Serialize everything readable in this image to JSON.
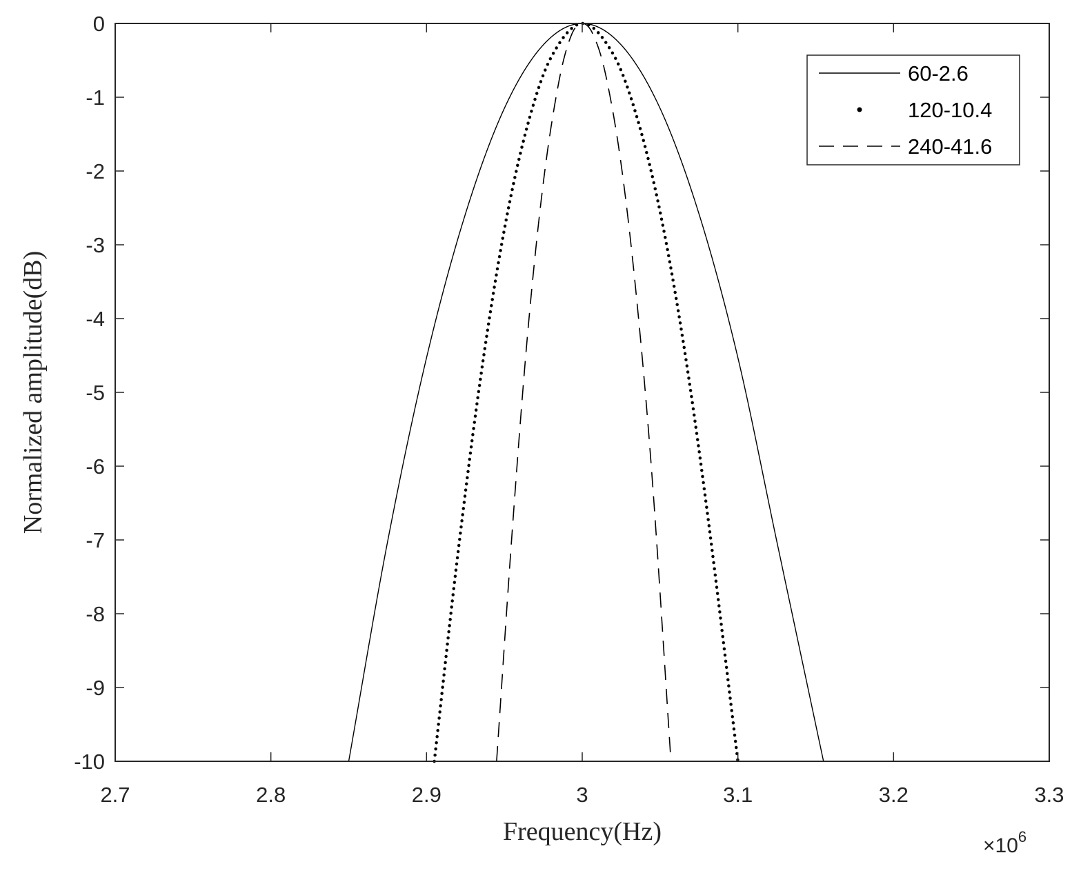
{
  "chart_data": {
    "type": "line",
    "xlabel": "Frequency(Hz)",
    "ylabel": "Normalized amplitude(dB)",
    "x_multiplier": "×10",
    "x_exponent": "6",
    "xlim": [
      2.7,
      3.3
    ],
    "ylim": [
      -10,
      0
    ],
    "x_ticks": [
      2.7,
      2.8,
      2.9,
      3.0,
      3.1,
      3.2,
      3.3
    ],
    "x_tick_labels": [
      "2.7",
      "2.8",
      "2.9",
      "3",
      "3.1",
      "3.2",
      "3.3"
    ],
    "y_ticks": [
      0,
      -1,
      -2,
      -3,
      -4,
      -5,
      -6,
      -7,
      -8,
      -9,
      -10
    ],
    "y_tick_labels": [
      "0",
      "-1",
      "-2",
      "-3",
      "-4",
      "-5",
      "-6",
      "-7",
      "-8",
      "-9",
      "-10"
    ],
    "grid": false,
    "legend_position": "top-right",
    "series": [
      {
        "name": "60-2.6",
        "style": "solid",
        "color": "#000000",
        "x": [
          2.85,
          2.875,
          2.9,
          2.925,
          2.95,
          2.975,
          3.0,
          3.025,
          3.05,
          3.075,
          3.1,
          3.125,
          3.155
        ],
        "y": [
          -10,
          -7.02,
          -4.53,
          -2.58,
          -1.15,
          -0.29,
          0,
          -0.29,
          -1.15,
          -2.58,
          -4.53,
          -7.02,
          -10
        ]
      },
      {
        "name": "120-10.4",
        "style": "dotted",
        "color": "#000000",
        "x": [
          2.905,
          2.92,
          2.935,
          2.95,
          2.965,
          2.98,
          3.0,
          3.02,
          3.035,
          3.05,
          3.065,
          3.08,
          3.1
        ],
        "y": [
          -10,
          -7.21,
          -4.76,
          -2.79,
          -1.37,
          -0.46,
          0,
          -0.42,
          -1.26,
          -2.55,
          -4.33,
          -6.57,
          -10
        ]
      },
      {
        "name": "240-41.6",
        "style": "dashed",
        "color": "#000000",
        "x": [
          2.945,
          2.955,
          2.965,
          2.975,
          2.985,
          2.993,
          3.0,
          3.007,
          3.015,
          3.025,
          3.035,
          3.045,
          3.057
        ],
        "y": [
          -10,
          -6.89,
          -4.19,
          -2.16,
          -0.79,
          -0.16,
          0,
          -0.15,
          -0.69,
          -1.91,
          -3.74,
          -6.18,
          -10
        ]
      }
    ]
  }
}
